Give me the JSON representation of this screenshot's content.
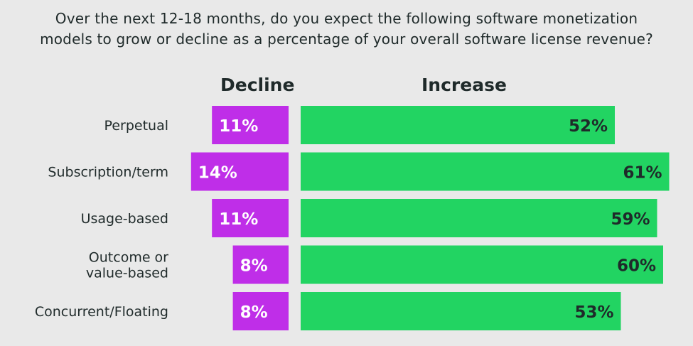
{
  "chart_data": {
    "type": "bar",
    "title": "Over the next 12-18 months, do you expect the following software monetization models to grow or decline as a percentage of your overall software license revenue?",
    "title_lines": [
      "Over the next 12-18 months, do you expect the following software monetization",
      "models to grow or decline as a percentage of your overall software license revenue?"
    ],
    "categories": [
      "Perpetual",
      "Subscription/term",
      "Usage-based",
      "Outcome or value-based",
      "Concurrent/Floating"
    ],
    "category_lines": [
      [
        "Perpetual"
      ],
      [
        "Subscription/term"
      ],
      [
        "Usage-based"
      ],
      [
        "Outcome or",
        "value-based"
      ],
      [
        "Concurrent/Floating"
      ]
    ],
    "series": [
      {
        "name": "Decline",
        "values": [
          11,
          14,
          11,
          8,
          8
        ],
        "labels": [
          "11%",
          "14%",
          "11%",
          "8%",
          "8%"
        ],
        "color": "#bf2ee8"
      },
      {
        "name": "Increase",
        "values": [
          52,
          61,
          59,
          60,
          53
        ],
        "labels": [
          "52%",
          "61%",
          "59%",
          "60%",
          "53%"
        ],
        "color": "#22d462"
      }
    ],
    "xlabel": "",
    "ylabel": "",
    "grid": false,
    "legend": "column headers above bars",
    "background": "#e9e9e9",
    "decline_label_color": "#ffffff",
    "increase_label_color": "#1f2a2a"
  }
}
